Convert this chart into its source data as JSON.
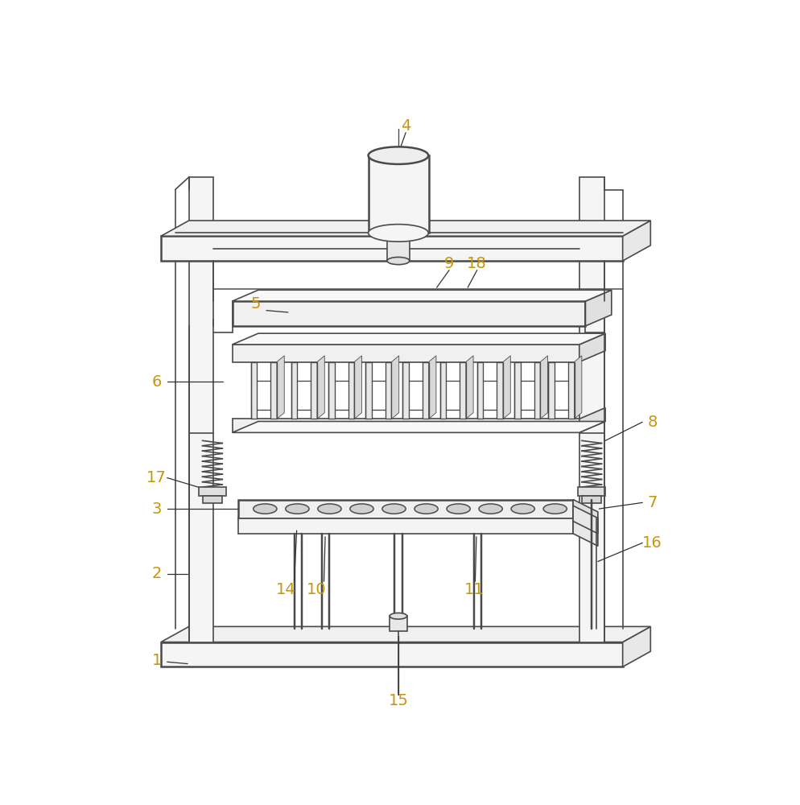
{
  "bg_color": "#ffffff",
  "line_color": "#4a4a4a",
  "number_color": "#c8960a",
  "lw": 1.2,
  "lw_thick": 1.8,
  "figsize": [
    9.95,
    10.0
  ],
  "dpi": 100
}
